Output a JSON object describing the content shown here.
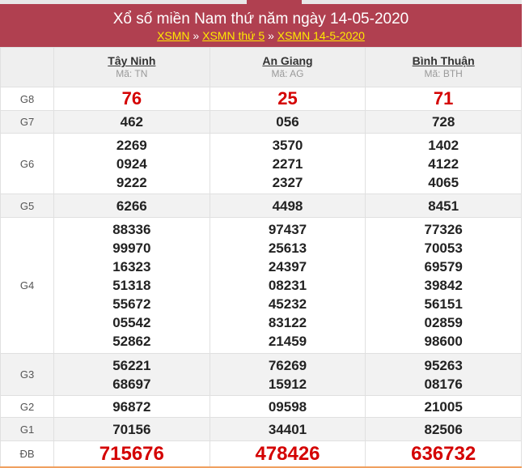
{
  "header": {
    "title": "Xổ số miền Nam thứ năm ngày 14-05-2020",
    "breadcrumbs": [
      "XSMN",
      "XSMN thứ 5",
      "XSMN 14-5-2020"
    ],
    "separator": "»"
  },
  "colors": {
    "header_bg": "#b04050",
    "link": "#ffea00",
    "highlight": "#d40000"
  },
  "provinces": [
    {
      "name": "Tây Ninh",
      "code": "Mã: TN"
    },
    {
      "name": "An Giang",
      "code": "Mã: AG"
    },
    {
      "name": "Bình Thuận",
      "code": "Mã: BTH"
    }
  ],
  "prizes": [
    {
      "label": "G8",
      "values": [
        [
          "76"
        ],
        [
          "25"
        ],
        [
          "71"
        ]
      ]
    },
    {
      "label": "G7",
      "values": [
        [
          "462"
        ],
        [
          "056"
        ],
        [
          "728"
        ]
      ]
    },
    {
      "label": "G6",
      "values": [
        [
          "2269",
          "0924",
          "9222"
        ],
        [
          "3570",
          "2271",
          "2327"
        ],
        [
          "1402",
          "4122",
          "4065"
        ]
      ]
    },
    {
      "label": "G5",
      "values": [
        [
          "6266"
        ],
        [
          "4498"
        ],
        [
          "8451"
        ]
      ]
    },
    {
      "label": "G4",
      "values": [
        [
          "88336",
          "99970",
          "16323",
          "51318",
          "55672",
          "05542",
          "52862"
        ],
        [
          "97437",
          "25613",
          "24397",
          "08231",
          "45232",
          "83122",
          "21459"
        ],
        [
          "77326",
          "70053",
          "69579",
          "39842",
          "56151",
          "02859",
          "98600"
        ]
      ]
    },
    {
      "label": "G3",
      "values": [
        [
          "56221",
          "68697"
        ],
        [
          "76269",
          "15912"
        ],
        [
          "95263",
          "08176"
        ]
      ]
    },
    {
      "label": "G2",
      "values": [
        [
          "96872"
        ],
        [
          "09598"
        ],
        [
          "21005"
        ]
      ]
    },
    {
      "label": "G1",
      "values": [
        [
          "70156"
        ],
        [
          "34401"
        ],
        [
          "82506"
        ]
      ]
    },
    {
      "label": "ĐB",
      "values": [
        [
          "715676"
        ],
        [
          "478426"
        ],
        [
          "636732"
        ]
      ]
    }
  ]
}
